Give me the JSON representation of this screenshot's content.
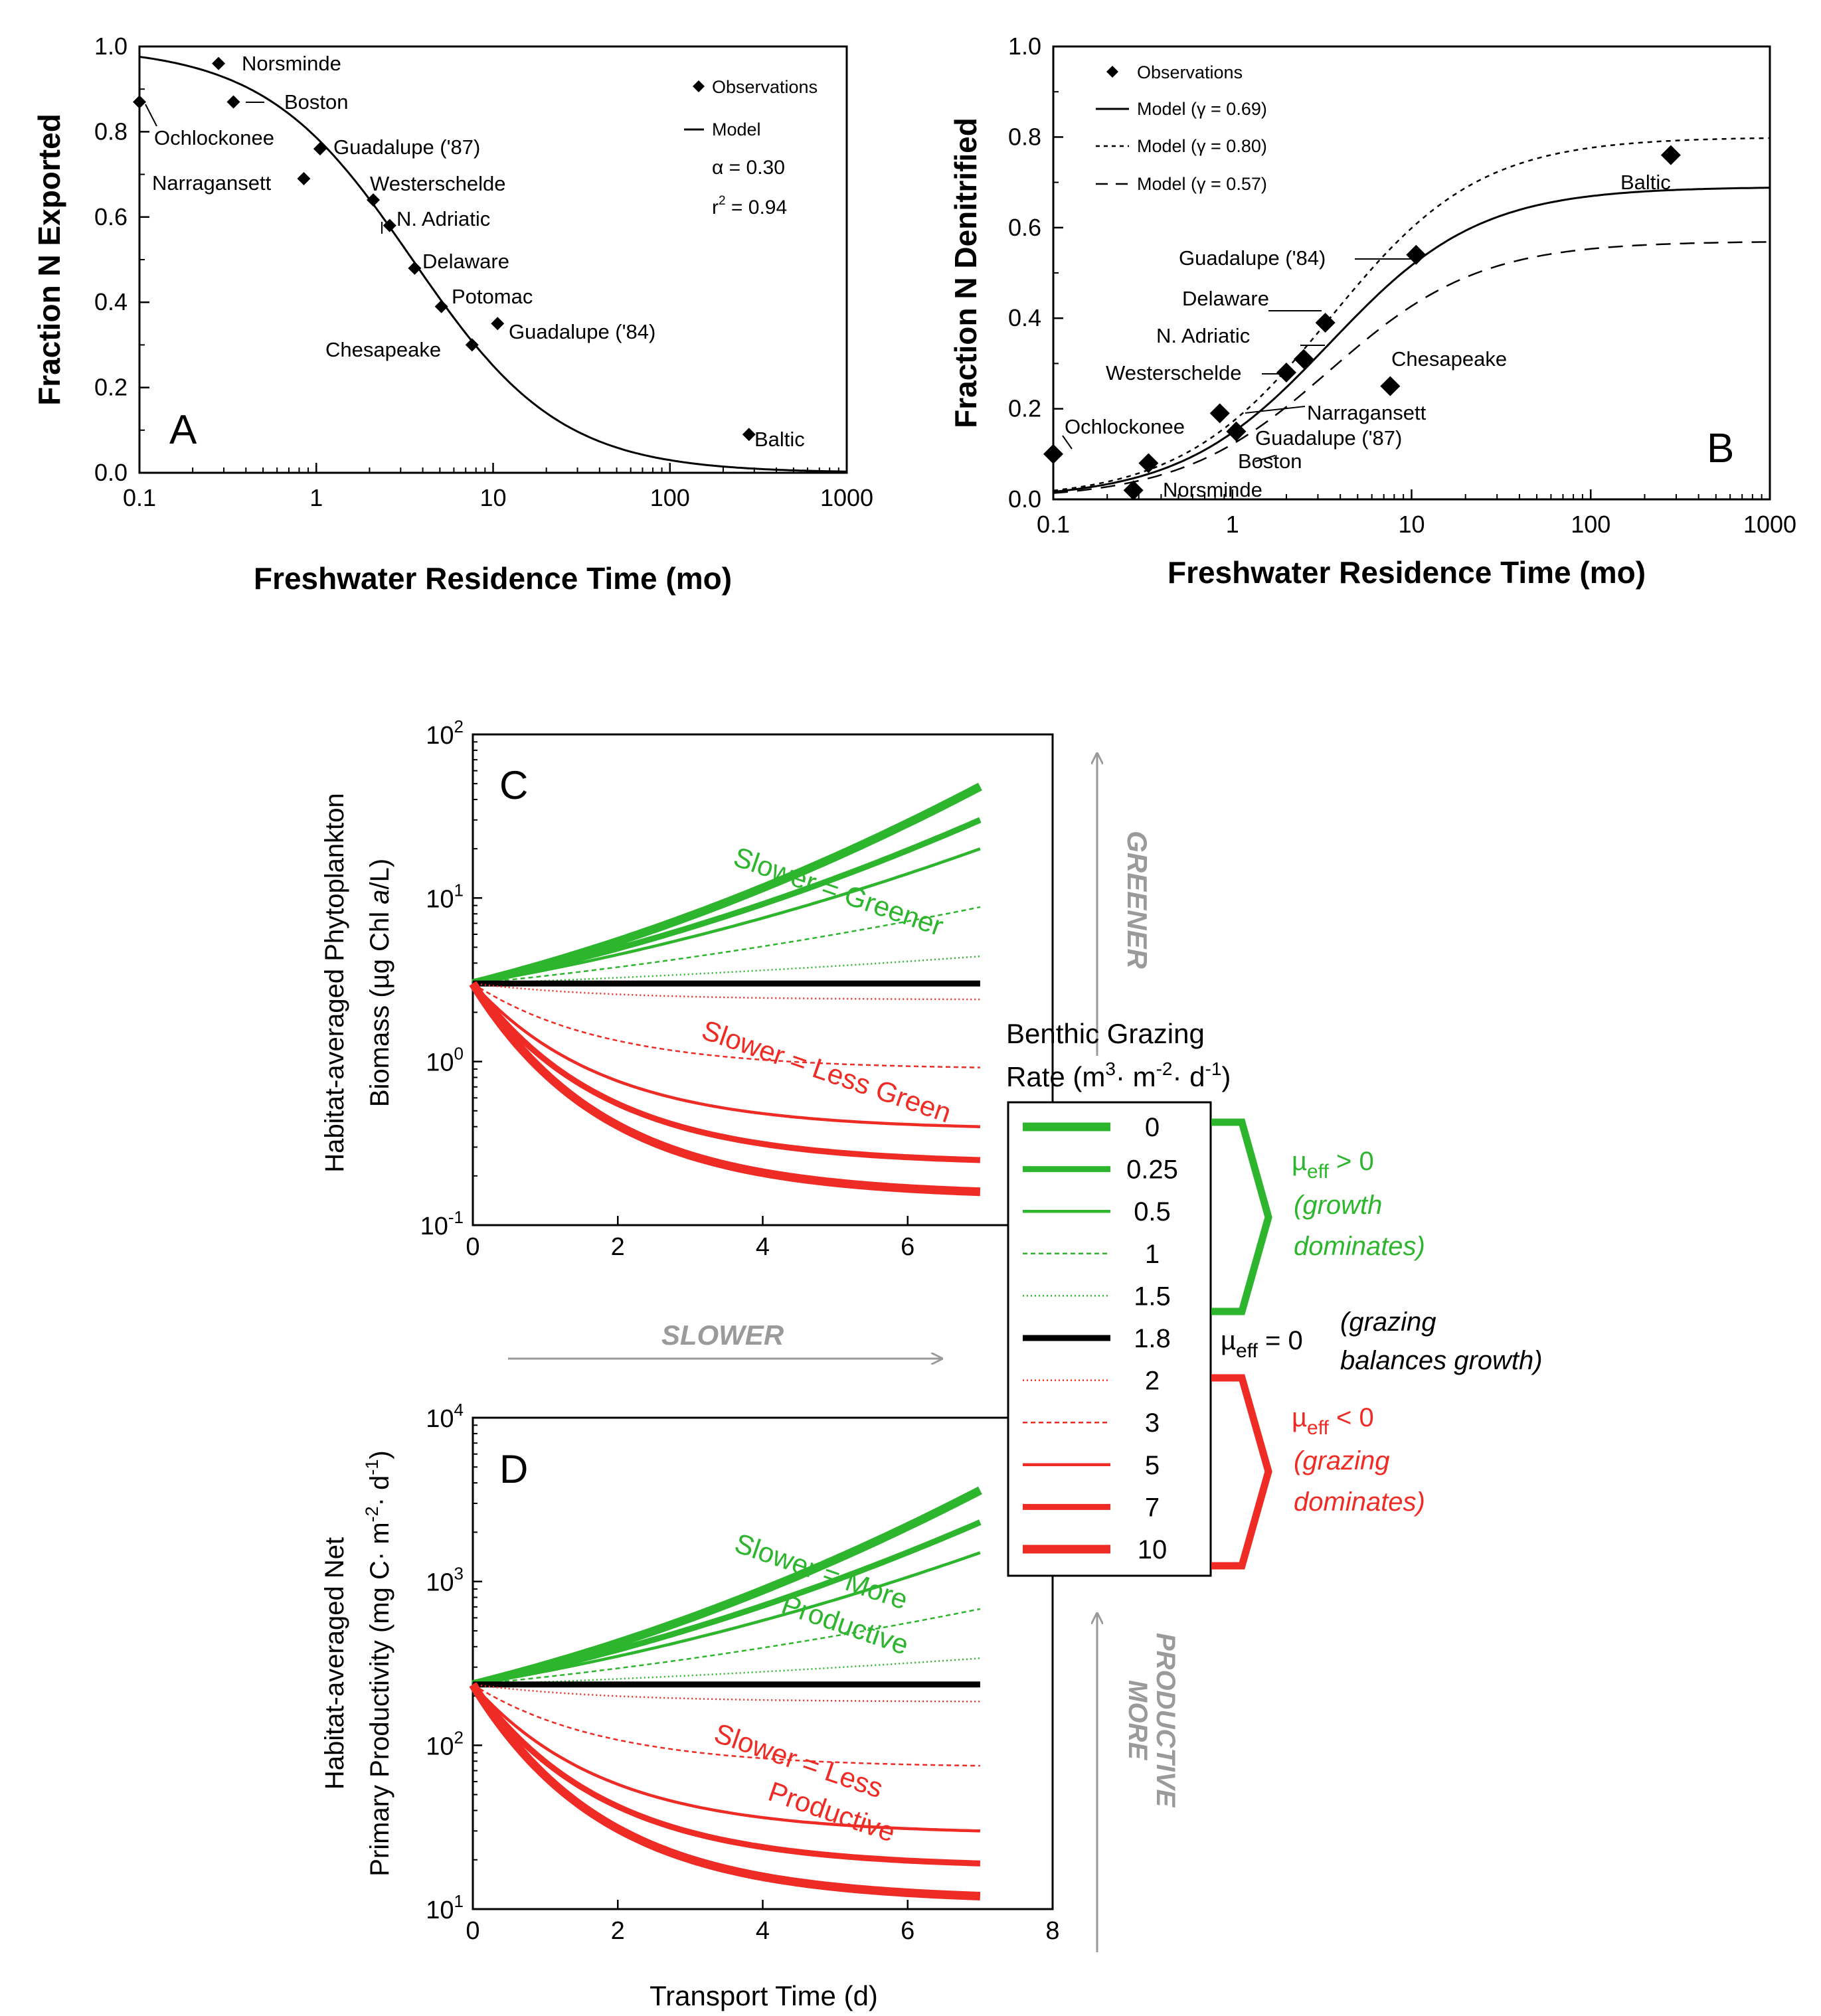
{
  "colors": {
    "green": "#2db52d",
    "red": "#ee2b24",
    "black": "#000000",
    "gray": "#9a9a9a"
  },
  "chart_data": [
    {
      "id": "A",
      "type": "scatter",
      "panel_label": "A",
      "xlabel": "Freshwater Residence Time (mo)",
      "ylabel": "Fraction N Exported",
      "xscale": "log",
      "xlim": [
        0.1,
        1000
      ],
      "ylim": [
        0,
        1
      ],
      "xticks": [
        "0.1",
        "1",
        "10",
        "100",
        "1000"
      ],
      "yticks": [
        "0.0",
        "0.2",
        "0.4",
        "0.6",
        "0.8",
        "1.0"
      ],
      "legend": {
        "observations": "Observations",
        "model": "Model",
        "alpha": "α = 0.30",
        "r2_prefix": "r",
        "r2_sup": "2",
        "r2_value": " = 0.94"
      },
      "model": {
        "name": "Model",
        "alpha": 0.3
      },
      "points": [
        {
          "label": "Ochlockonee",
          "x": 0.1,
          "y": 0.87
        },
        {
          "label": "Norsminde",
          "x": 0.28,
          "y": 0.96
        },
        {
          "label": "Boston",
          "x": 0.34,
          "y": 0.87
        },
        {
          "label": "Narragansett",
          "x": 0.85,
          "y": 0.69
        },
        {
          "label": "Guadalupe ('87)",
          "x": 1.05,
          "y": 0.76
        },
        {
          "label": "Westerschelde",
          "x": 2.1,
          "y": 0.64
        },
        {
          "label": "N. Adriatic",
          "x": 2.6,
          "y": 0.58
        },
        {
          "label": "Delaware",
          "x": 3.6,
          "y": 0.48
        },
        {
          "label": "Potomac",
          "x": 5.1,
          "y": 0.39
        },
        {
          "label": "Chesapeake",
          "x": 7.6,
          "y": 0.3
        },
        {
          "label": "Guadalupe ('84)",
          "x": 10.6,
          "y": 0.35
        },
        {
          "label": "Baltic",
          "x": 280,
          "y": 0.09
        }
      ]
    },
    {
      "id": "B",
      "type": "scatter",
      "panel_label": "B",
      "xlabel": "Freshwater Residence Time (mo)",
      "ylabel": "Fraction N Denitrified",
      "xscale": "log",
      "xlim": [
        0.1,
        1000
      ],
      "ylim": [
        0,
        1
      ],
      "xticks": [
        "0.1",
        "1",
        "10",
        "100",
        "1000"
      ],
      "yticks": [
        "0.0",
        "0.2",
        "0.4",
        "0.6",
        "0.8",
        "1.0"
      ],
      "legend": [
        "Observations",
        "Model (γ = 0.69)",
        "Model (γ = 0.80)",
        "Model (γ = 0.57)"
      ],
      "models": [
        {
          "name": "Model (γ = 0.69)",
          "gamma": 0.69,
          "style": "solid"
        },
        {
          "name": "Model (γ = 0.80)",
          "gamma": 0.8,
          "style": "dotted"
        },
        {
          "name": "Model (γ = 0.57)",
          "gamma": 0.57,
          "style": "dashed"
        }
      ],
      "points": [
        {
          "label": "Ochlockonee",
          "x": 0.1,
          "y": 0.1
        },
        {
          "label": "Norsminde",
          "x": 0.28,
          "y": 0.02
        },
        {
          "label": "Boston",
          "x": 0.34,
          "y": 0.08
        },
        {
          "label": "Narragansett",
          "x": 0.85,
          "y": 0.19
        },
        {
          "label": "Guadalupe ('87)",
          "x": 1.05,
          "y": 0.15
        },
        {
          "label": "Westerschelde",
          "x": 2.0,
          "y": 0.28
        },
        {
          "label": "N. Adriatic",
          "x": 2.5,
          "y": 0.31
        },
        {
          "label": "Delaware",
          "x": 3.3,
          "y": 0.39
        },
        {
          "label": "Chesapeake",
          "x": 7.6,
          "y": 0.25
        },
        {
          "label": "Guadalupe ('84)",
          "x": 10.6,
          "y": 0.54
        },
        {
          "label": "Baltic",
          "x": 280,
          "y": 0.76
        }
      ]
    },
    {
      "id": "C",
      "type": "line",
      "panel_label": "C",
      "ylabel_line1": "Habitat-averaged Phytoplankton",
      "ylabel_line2_pre": "Biomass (µg Chl ",
      "ylabel_line2_ital": "a",
      "ylabel_line2_post": "/L)",
      "yscale": "log",
      "xlim": [
        0,
        8
      ],
      "ylim_exp": [
        -1,
        2
      ],
      "xticks": [
        "0",
        "2",
        "4",
        "6"
      ],
      "ytick_exp": [
        "-1",
        "0",
        "1",
        "2"
      ],
      "ytick_base": "10",
      "start_value": 3.0,
      "series": [
        {
          "grazing": "0",
          "end": 48
        },
        {
          "grazing": "0.25",
          "end": 30
        },
        {
          "grazing": "0.5",
          "end": 20
        },
        {
          "grazing": "1",
          "end": 8.8
        },
        {
          "grazing": "1.5",
          "end": 4.4
        },
        {
          "grazing": "1.8",
          "end": 3.0
        },
        {
          "grazing": "2",
          "end": 2.4
        },
        {
          "grazing": "3",
          "end": 0.92
        },
        {
          "grazing": "5",
          "end": 0.4
        },
        {
          "grazing": "7",
          "end": 0.25
        },
        {
          "grazing": "10",
          "end": 0.16
        }
      ],
      "annotations": [
        "Slower = Greener",
        "Slower = Less Green"
      ],
      "arrow_label": "GREENER"
    },
    {
      "id": "D",
      "type": "line",
      "panel_label": "D",
      "ylabel_line1": "Habitat-averaged Net",
      "ylabel_line2_pre": "Primary Productivity (mg C· m",
      "ylabel_line2_sup1": "-2",
      "ylabel_line2_mid": "· d",
      "ylabel_line2_sup2": "-1",
      "ylabel_line2_post": ")",
      "xlabel": "Transport Time (d)",
      "yscale": "log",
      "xlim": [
        0,
        8
      ],
      "ylim_exp": [
        1,
        4
      ],
      "xticks": [
        "0",
        "2",
        "4",
        "6",
        "8"
      ],
      "ytick_exp": [
        "1",
        "2",
        "3",
        "4"
      ],
      "ytick_base": "10",
      "start_value": 235,
      "series": [
        {
          "grazing": "0",
          "end": 3600
        },
        {
          "grazing": "0.25",
          "end": 2300
        },
        {
          "grazing": "0.5",
          "end": 1500
        },
        {
          "grazing": "1",
          "end": 680
        },
        {
          "grazing": "1.5",
          "end": 340
        },
        {
          "grazing": "1.8",
          "end": 235
        },
        {
          "grazing": "2",
          "end": 185
        },
        {
          "grazing": "3",
          "end": 75
        },
        {
          "grazing": "5",
          "end": 30
        },
        {
          "grazing": "7",
          "end": 19
        },
        {
          "grazing": "10",
          "end": 12
        }
      ],
      "annotations": [
        "Slower = More",
        "Productive",
        "Slower = Less",
        "Productive"
      ],
      "arrow_label_1": "MORE",
      "arrow_label_2": "PRODUCTIVE"
    }
  ],
  "shared": {
    "slower_label": "SLOWER",
    "legend_title_1": "Benthic Grazing",
    "legend_title_2_pre": "Rate (m",
    "legend_title_2_sup1": "3",
    "legend_title_2_mid1": "· m",
    "legend_title_2_sup2": "-2",
    "legend_title_2_mid2": "· d",
    "legend_title_2_sup3": "-1",
    "legend_title_2_post": ")",
    "legend_items": [
      "0",
      "0.25",
      "0.5",
      "1",
      "1.5",
      "1.8",
      "2",
      "3",
      "5",
      "7",
      "10"
    ],
    "mu": "µ",
    "eff": "eff",
    "pos_sign": " > 0",
    "pos_l2": "(growth",
    "pos_l3": "dominates)",
    "zero_sign": " = 0",
    "zero_l1": "(grazing",
    "zero_l2": "balances growth)",
    "neg_sign": " < 0",
    "neg_l2": "(grazing",
    "neg_l3": "dominates)"
  }
}
